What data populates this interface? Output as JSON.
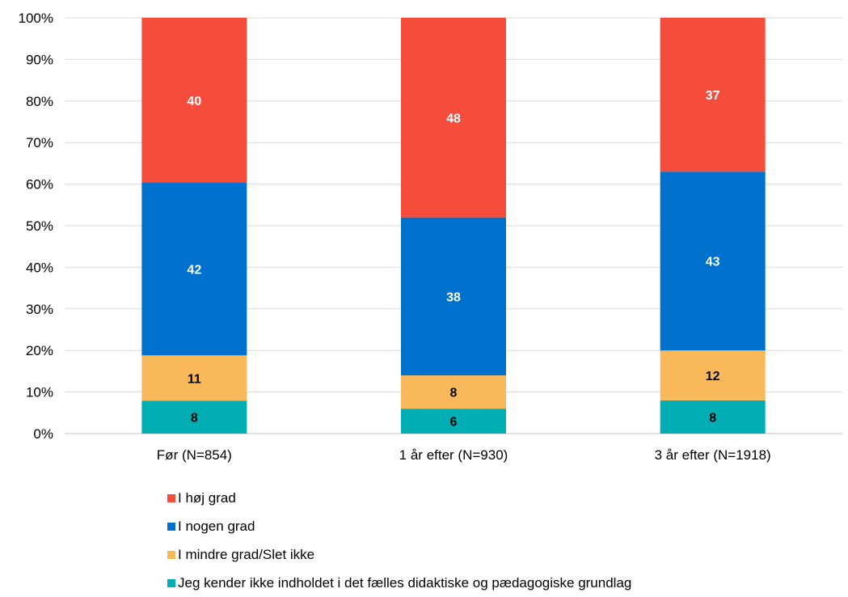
{
  "chart_data": {
    "type": "bar",
    "stacked": true,
    "percent": true,
    "categories": [
      "Før (N=854)",
      "1 år efter (N=930)",
      "3 år efter (N=1918)"
    ],
    "series": [
      {
        "name": "Jeg kender ikke indholdet i det fælles didaktiske og pædagogiske grundlag",
        "values": [
          8,
          6,
          8
        ],
        "color": "#00AEB3",
        "label_color": "#000000"
      },
      {
        "name": "I mindre grad/Slet ikke",
        "values": [
          11,
          8,
          12
        ],
        "color": "#F9B95A",
        "label_color": "#000000"
      },
      {
        "name": "I nogen grad",
        "values": [
          42,
          38,
          43
        ],
        "color": "#0072CE",
        "label_color": "#ffffff"
      },
      {
        "name": "I høj grad",
        "values": [
          40,
          48,
          37
        ],
        "color": "#F54C3B",
        "label_color": "#ffffff"
      }
    ],
    "yticks": [
      "0%",
      "10%",
      "20%",
      "30%",
      "40%",
      "50%",
      "60%",
      "70%",
      "80%",
      "90%",
      "100%"
    ],
    "ylim": [
      0,
      100
    ],
    "grid": true,
    "legend_position": "bottom"
  },
  "legend": [
    {
      "label": "I høj grad",
      "color": "#F54C3B"
    },
    {
      "label": "I nogen grad",
      "color": "#0072CE"
    },
    {
      "label": "I mindre grad/Slet ikke",
      "color": "#F9B95A"
    },
    {
      "label": "Jeg kender ikke indholdet i det fælles didaktiske og pædagogiske grundlag",
      "color": "#00AEB3"
    }
  ]
}
